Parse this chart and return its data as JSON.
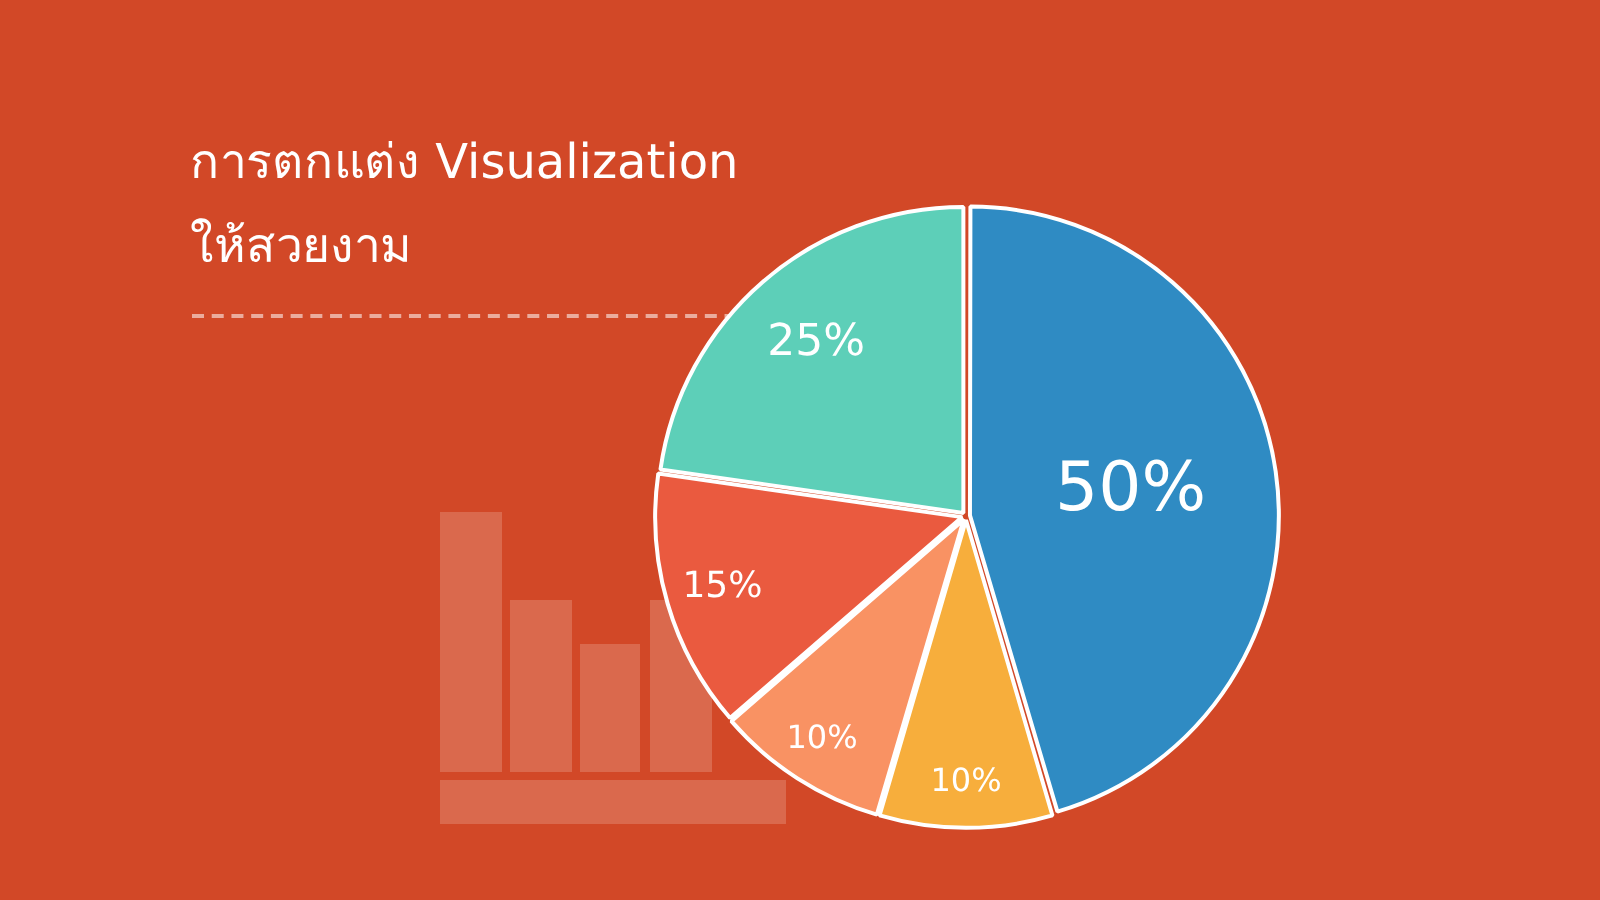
{
  "chart_data": {
    "type": "pie",
    "title": "การตกแต่ง Visualization ให้สวยงาม",
    "categories": [
      null,
      null,
      null,
      null,
      null
    ],
    "values": [
      50,
      10,
      10,
      15,
      25
    ],
    "colors": [
      "#2f8bc3",
      "#f7ae3c",
      "#f99263",
      "#ea5a3f",
      "#5dcfb8"
    ],
    "value_labels": [
      "50%",
      "10%",
      "10%",
      "15%",
      "25%"
    ]
  }
}
